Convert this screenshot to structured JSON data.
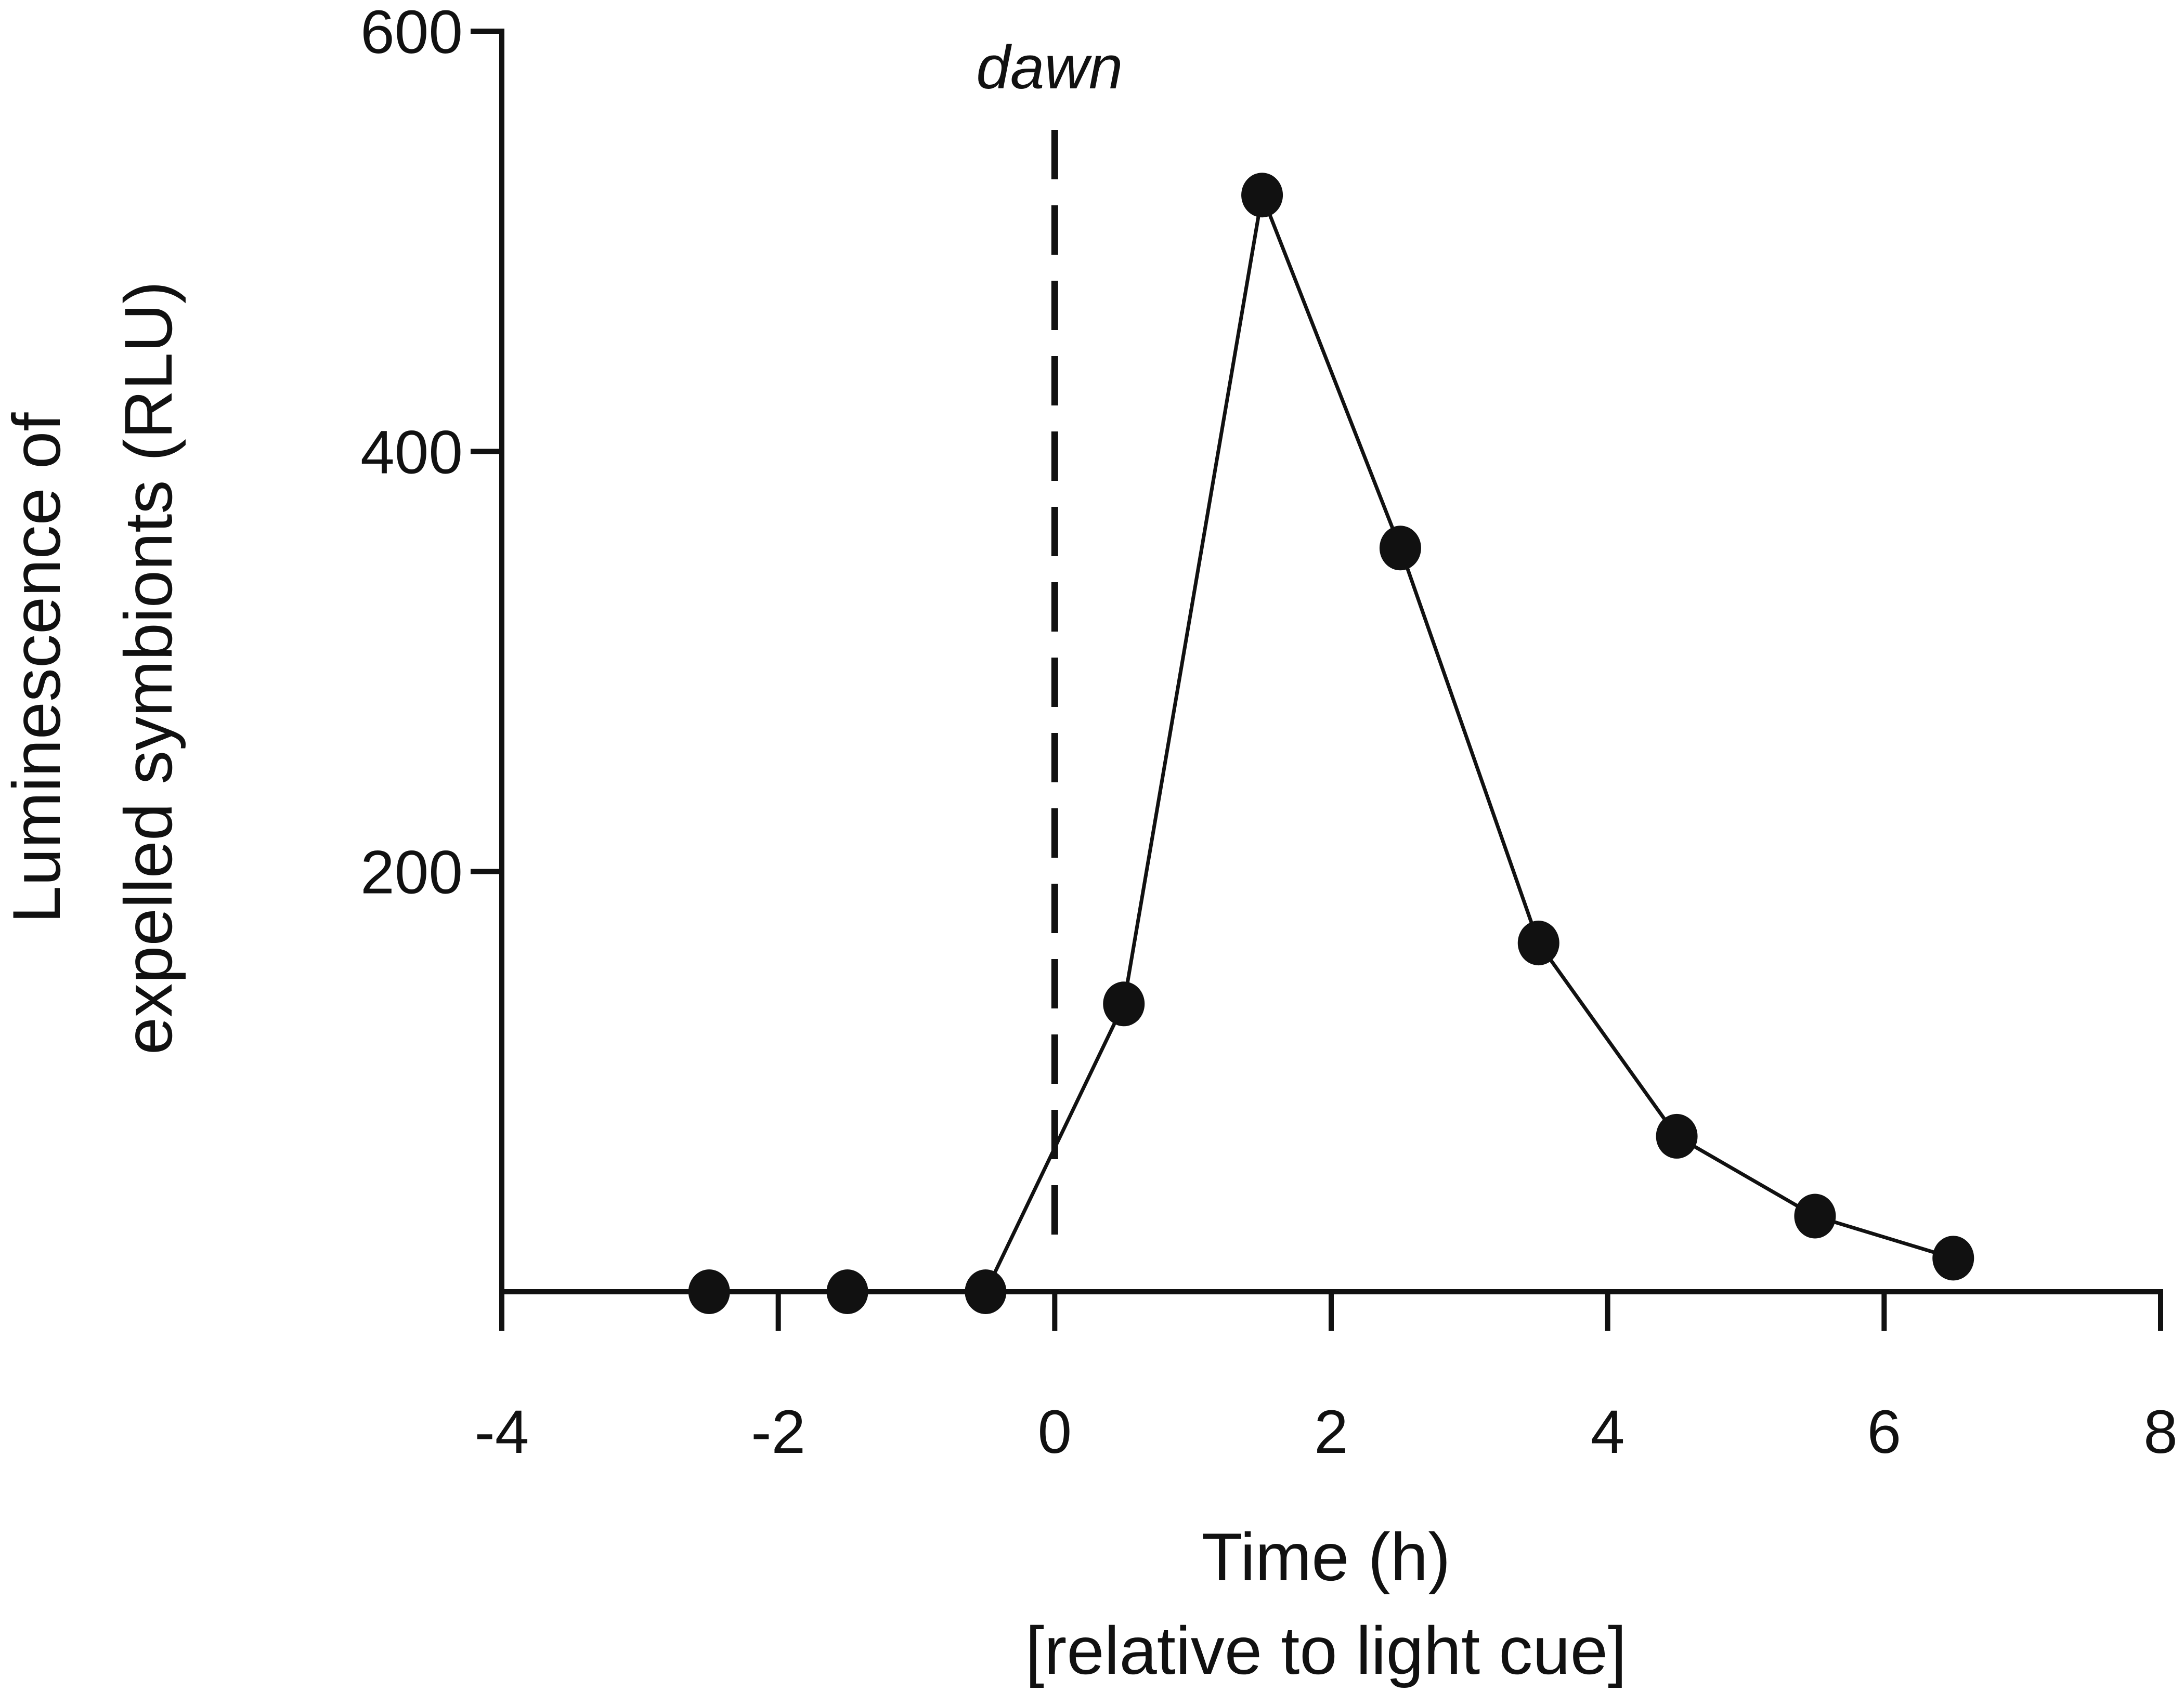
{
  "chart_data": {
    "type": "line",
    "title": "",
    "xlabel": "Time (h)",
    "xlabel_sub": "[relative to light cue]",
    "ylabel_lines": [
      "Luminescence of",
      "expelled symbionts (RLU)"
    ],
    "xlim": [
      -4,
      8
    ],
    "ylim": [
      0,
      600
    ],
    "x_ticks": [
      -4,
      -2,
      0,
      2,
      4,
      6,
      8
    ],
    "x_tick_labels": [
      "-4",
      "-2",
      "0",
      "2",
      "4",
      "6",
      "8"
    ],
    "y_ticks": [
      200,
      400,
      600
    ],
    "y_tick_labels": [
      "200",
      "400",
      "600"
    ],
    "grid": false,
    "series": [
      {
        "x": [
          -2.5,
          -1.5,
          -0.5,
          0.5,
          1.5,
          2.5,
          3.5,
          4.5,
          5.5,
          6.5
        ],
        "y": [
          0,
          0,
          0,
          137,
          522,
          354,
          166,
          74,
          36,
          16
        ],
        "marker": "filled-circle",
        "color": "#111111"
      }
    ],
    "annotations": [
      {
        "text": "dawn",
        "x": 0,
        "style": "dashed-vertical-line"
      }
    ]
  }
}
